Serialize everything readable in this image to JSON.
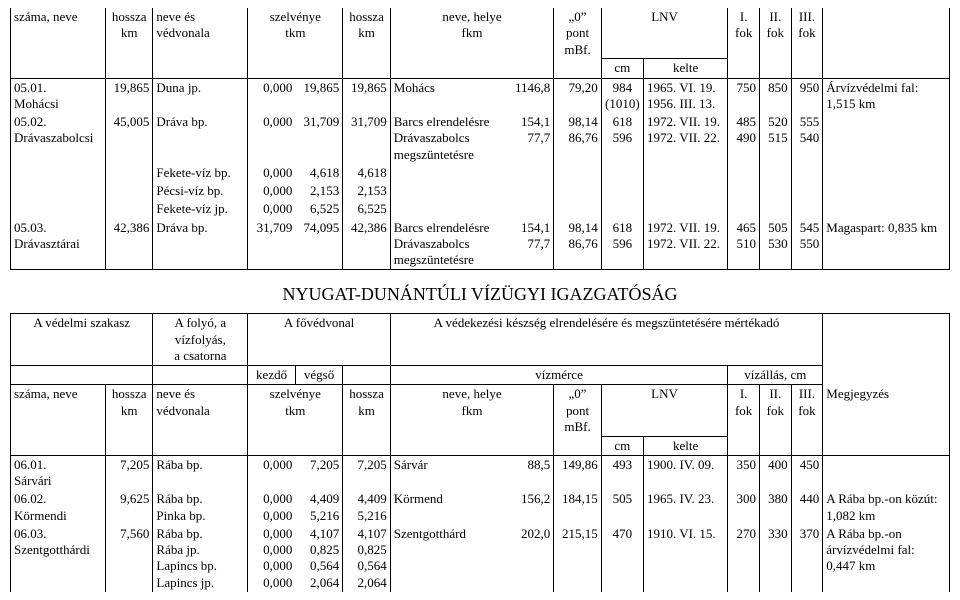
{
  "top_header": {
    "szama_neve": "száma, neve",
    "hossza_km": "hossza\nkm",
    "neve_vedvonala": "neve és védvonala",
    "szelvenye_tkm": "szelvénye\ntkm",
    "hossza_km2": "hossza\nkm",
    "neve_helye_fkm": "neve, helye\nfkm",
    "zero_pont_mbf": "„0”\npont\nmBf.",
    "lnv": "LNV",
    "cm": "cm",
    "kelte": "kelte",
    "i_fok": "I.\nfok",
    "ii_fok": "II.\nfok",
    "iii_fok": "III.\nfok"
  },
  "rows1": {
    "r1": {
      "code": "05.01.",
      "name": "Mohácsi",
      "hossza": "19,865",
      "folyo": "Duna jp.",
      "szelv": "0,000",
      "s2": "19,865",
      "hossza2": "19,865",
      "hely": "Mohács",
      "fkm": "1146,8",
      "mbf": "79,20",
      "lnv_cm": "984\n(1010)",
      "lnv_kelte": "1965. VI. 19.\n1956. III. 13.",
      "i": "750",
      "ii": "850",
      "iii": "950",
      "meg": "Árvízvédelmi fal:\n1,515 km"
    },
    "r2": {
      "code": "05.02.",
      "name": "Drávaszabolcsi",
      "hossza": "45,005",
      "folyo": "Dráva bp.",
      "szelv": "0,000",
      "s2": "31,709",
      "hossza2": "31,709",
      "hely": "Barcs elrendelésre\nDrávaszabolcs\nmegszüntetésre",
      "fkm": "154,1\n77,7",
      "mbf": "98,14\n86,76",
      "lnv_cm": "618\n596",
      "lnv_kelte": "1972. VII. 19.\n1972. VII. 22.",
      "i": "485\n490",
      "ii": "520\n515",
      "iii": "555\n540",
      "sub": [
        {
          "folyo": "Fekete-víz bp.",
          "szelv": "0,000",
          "s2": "4,618",
          "hossza2": "4,618"
        },
        {
          "folyo": "Pécsi-víz bp.",
          "szelv": "0,000",
          "s2": "2,153",
          "hossza2": "2,153"
        },
        {
          "folyo": "Fekete-víz jp.",
          "szelv": "0,000",
          "s2": "6,525",
          "hossza2": "6,525"
        }
      ]
    },
    "r3": {
      "code": "05.03.",
      "name": "Drávasztárai",
      "hossza": "42,386",
      "folyo": "Dráva bp.",
      "szelv": "31,709",
      "s2": "74,095",
      "hossza2": "42,386",
      "hely": "Barcs elrendelésre\nDrávaszabolcs\nmegszüntetésre",
      "fkm": "154,1\n77,7",
      "mbf": "98,14\n86,76",
      "lnv_cm": "618\n596",
      "lnv_kelte": "1972. VII. 19.\n1972. VII. 22.",
      "i": "465\n510",
      "ii": "505\n530",
      "iii": "545\n550",
      "meg": "Magaspart: 0,835 km"
    }
  },
  "section_title": "NYUGAT-DUNÁNTÚLI VÍZÜGYI IGAZGATÓSÁG",
  "header2": {
    "vedelmi_szakasz": "A védelmi szakasz",
    "folyo": "A folyó, a\nvízfolyás,\na csatorna",
    "fovedvonal": "A fővédvonal",
    "vedekezesi": "A védekezési készség elrendelésére és megszüntetésére mértékadó",
    "kezdo": "kezdő",
    "vegso": "végső",
    "vizmerce": "vízmérce",
    "vizallas": "vízállás, cm",
    "megjegyzes": "Megjegyzés"
  },
  "rows2": {
    "r1": {
      "code": "06.01.",
      "name": "Sárvári",
      "hossza": "7,205",
      "folyo": "Rába bp.",
      "szelv": "0,000",
      "s2": "7,205",
      "hossza2": "7,205",
      "hely": "Sárvár",
      "fkm": "88,5",
      "mbf": "149,86",
      "lnv_cm": "493",
      "lnv_kelte": "1900. IV. 09.",
      "i": "350",
      "ii": "400",
      "iii": "450"
    },
    "r2": {
      "code": "06.02.",
      "name": "Körmendi",
      "hossza": "9,625",
      "folyo": "Rába bp.\nPinka bp.",
      "szelv": "0,000\n0,000",
      "s2": "4,409\n5,216",
      "hossza2": "4,409\n5,216",
      "hely": "Körmend",
      "fkm": "156,2",
      "mbf": "184,15",
      "lnv_cm": "505",
      "lnv_kelte": "1965. IV. 23.",
      "i": "300",
      "ii": "380",
      "iii": "440",
      "meg": "A Rába bp.-on közút:\n1,082 km"
    },
    "r3": {
      "code": "06.03.",
      "name": "Szentgotthárdi",
      "hossza": "7,560",
      "folyo": "Rába bp.\nRába jp.\nLapincs bp.\nLapincs jp.",
      "szelv": "0,000\n0,000\n0,000\n0,000",
      "s2": "4,107\n0,825\n0,564\n2,064",
      "hossza2": "4,107\n0,825\n0,564\n2,064",
      "hely": "Szentgotthárd",
      "fkm": "202,0",
      "mbf": "215,15",
      "lnv_cm": "470",
      "lnv_kelte": "1910. VI. 15.",
      "i": "270",
      "ii": "330",
      "iii": "370",
      "meg": "A Rába bp.-on\nárvízvédelmi fal:\n0,447 km"
    }
  }
}
